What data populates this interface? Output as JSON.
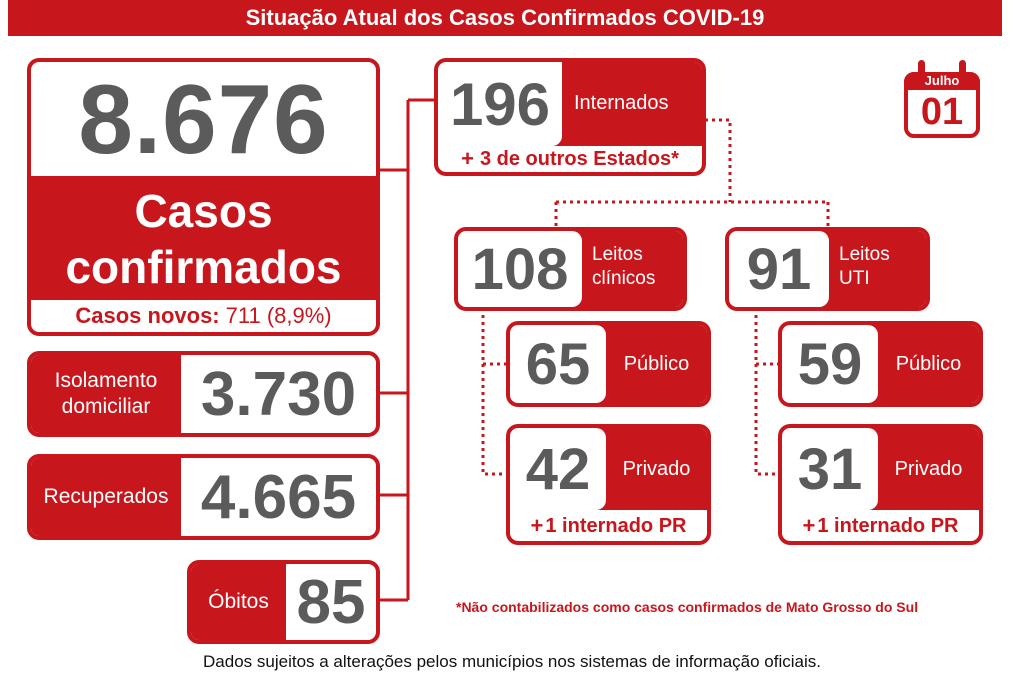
{
  "header": {
    "title": "Situação Atual dos Casos Confirmados COVID-19"
  },
  "calendar": {
    "month": "Julho",
    "day": "01"
  },
  "confirmed": {
    "number": "8.676",
    "label_line1": "Casos",
    "label_line2": "confirmados",
    "new_label": "Casos novos:",
    "new_value": "711 (8,9%)"
  },
  "isolation": {
    "label_line1": "Isolamento",
    "label_line2": "domiciliar",
    "number": "3.730"
  },
  "recovered": {
    "label": "Recuperados",
    "number": "4.665"
  },
  "deaths": {
    "label": "Óbitos",
    "number": "85"
  },
  "hospitalized": {
    "number": "196",
    "label": "Internados",
    "extra_plus": "+",
    "extra_text": "3 de outros Estados*"
  },
  "clinical": {
    "number": "108",
    "label_line1": "Leitos",
    "label_line2": "clínicos"
  },
  "uti": {
    "number": "91",
    "label_line1": "Leitos",
    "label_line2": "UTI"
  },
  "clinical_public": {
    "number": "65",
    "label": "Público"
  },
  "clinical_private": {
    "number": "42",
    "label": "Privado",
    "extra_plus": "+",
    "extra_text": "1 internado PR"
  },
  "uti_public": {
    "number": "59",
    "label": "Público"
  },
  "uti_private": {
    "number": "31",
    "label": "Privado",
    "extra_plus": "+",
    "extra_text": "1 internado PR"
  },
  "notes": {
    "asterisk": "*Não contabilizados como casos confirmados de Mato Grosso do Sul",
    "footer": "Dados sujeitos a alterações pelos municípios nos sistemas de informação oficiais."
  },
  "colors": {
    "brand_red": "#c8161d",
    "number_grey": "#5b5b5b"
  },
  "icons": [
    "calendar-icon"
  ]
}
